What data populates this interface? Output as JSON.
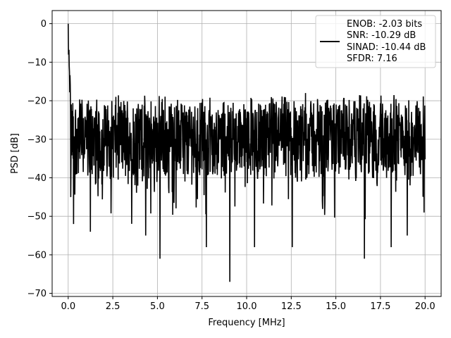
{
  "chart_data": {
    "type": "line",
    "title": "",
    "xlabel": "Frequency [MHz]",
    "ylabel": "PSD [dB]",
    "xlim": [
      -0.9,
      20.9
    ],
    "ylim": [
      -70.8,
      3.4
    ],
    "xticks": [
      0.0,
      2.5,
      5.0,
      7.5,
      10.0,
      12.5,
      15.0,
      17.5,
      20.0
    ],
    "xtick_labels": [
      "0.0",
      "2.5",
      "5.0",
      "7.5",
      "10.0",
      "12.5",
      "15.0",
      "17.5",
      "20.0"
    ],
    "yticks": [
      0,
      -10,
      -20,
      -30,
      -40,
      -50,
      -60,
      -70
    ],
    "ytick_labels": [
      "0",
      "−10",
      "−20",
      "−30",
      "−40",
      "−50",
      "−60",
      "−70"
    ],
    "grid": true,
    "legend_position": "top-right",
    "series": [
      {
        "color": "#000000",
        "x_range": [
          0.0,
          20.0
        ],
        "peak": {
          "x": 0.0,
          "y": 0
        },
        "typical_band": [
          -40,
          -20
        ],
        "notable_points": [
          {
            "x": 0.15,
            "y": -45
          },
          {
            "x": 0.3,
            "y": -52
          },
          {
            "x": 1.25,
            "y": -54
          },
          {
            "x": 4.35,
            "y": -55
          },
          {
            "x": 5.15,
            "y": -61
          },
          {
            "x": 7.75,
            "y": -58
          },
          {
            "x": 9.05,
            "y": -67
          },
          {
            "x": 10.45,
            "y": -58
          },
          {
            "x": 12.55,
            "y": -58
          },
          {
            "x": 13.3,
            "y": -18
          },
          {
            "x": 16.6,
            "y": -61
          },
          {
            "x": 18.1,
            "y": -58
          },
          {
            "x": 19.0,
            "y": -55
          },
          {
            "x": 19.95,
            "y": -49
          }
        ]
      }
    ],
    "legend_lines": [
      "ENOB: -2.03 bits",
      "SNR: -10.29 dB",
      "SINAD: -10.44 dB",
      "SFDR: 7.16"
    ]
  }
}
